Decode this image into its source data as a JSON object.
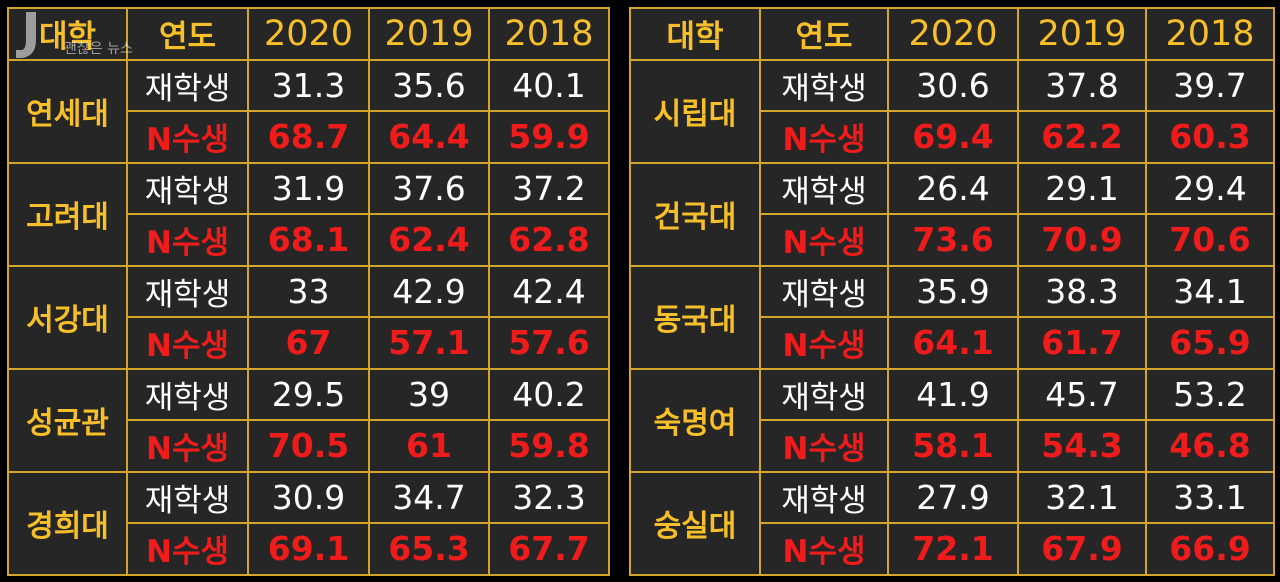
{
  "watermark": {
    "text": "괜찮은 뉴스",
    "icon": "newspaper-logo-icon"
  },
  "headers": {
    "university": "대학",
    "year": "연도",
    "y2020": "2020",
    "y2019": "2019",
    "y2018": "2018"
  },
  "labels": {
    "enrolled": "재학생",
    "repeat": "N수생"
  },
  "colors": {
    "gold": "#f7bf2a",
    "border": "#d4a52c",
    "red": "#f01c1c",
    "cell_bg": "#262626"
  },
  "left": {
    "u0": {
      "name": "연세대",
      "enrolled": [
        "31.3",
        "35.6",
        "40.1"
      ],
      "repeat": [
        "68.7",
        "64.4",
        "59.9"
      ]
    },
    "u1": {
      "name": "고려대",
      "enrolled": [
        "31.9",
        "37.6",
        "37.2"
      ],
      "repeat": [
        "68.1",
        "62.4",
        "62.8"
      ]
    },
    "u2": {
      "name": "서강대",
      "enrolled": [
        "33",
        "42.9",
        "42.4"
      ],
      "repeat": [
        "67",
        "57.1",
        "57.6"
      ]
    },
    "u3": {
      "name": "성균관",
      "enrolled": [
        "29.5",
        "39",
        "40.2"
      ],
      "repeat": [
        "70.5",
        "61",
        "59.8"
      ]
    },
    "u4": {
      "name": "경희대",
      "enrolled": [
        "30.9",
        "34.7",
        "32.3"
      ],
      "repeat": [
        "69.1",
        "65.3",
        "67.7"
      ]
    }
  },
  "right": {
    "u0": {
      "name": "시립대",
      "enrolled": [
        "30.6",
        "37.8",
        "39.7"
      ],
      "repeat": [
        "69.4",
        "62.2",
        "60.3"
      ]
    },
    "u1": {
      "name": "건국대",
      "enrolled": [
        "26.4",
        "29.1",
        "29.4"
      ],
      "repeat": [
        "73.6",
        "70.9",
        "70.6"
      ]
    },
    "u2": {
      "name": "동국대",
      "enrolled": [
        "35.9",
        "38.3",
        "34.1"
      ],
      "repeat": [
        "64.1",
        "61.7",
        "65.9"
      ]
    },
    "u3": {
      "name": "숙명여",
      "enrolled": [
        "41.9",
        "45.7",
        "53.2"
      ],
      "repeat": [
        "58.1",
        "54.3",
        "46.8"
      ]
    },
    "u4": {
      "name": "숭실대",
      "enrolled": [
        "27.9",
        "32.1",
        "33.1"
      ],
      "repeat": [
        "72.1",
        "67.9",
        "66.9"
      ]
    }
  }
}
